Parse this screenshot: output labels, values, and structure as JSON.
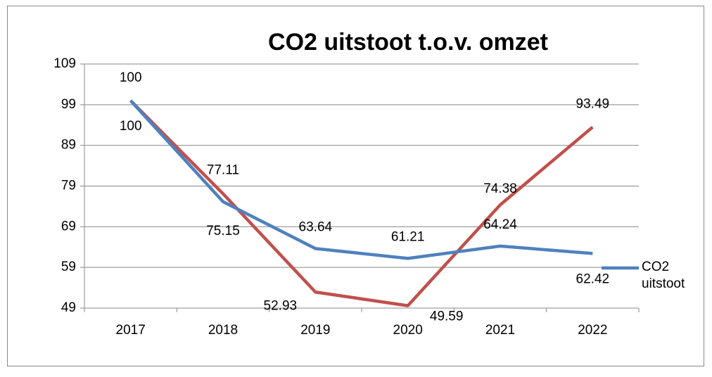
{
  "chart_data": {
    "type": "line",
    "title": "CO2 uitstoot t.o.v. omzet",
    "categories": [
      "2017",
      "2018",
      "2019",
      "2020",
      "2021",
      "2022"
    ],
    "series": [
      {
        "name": "CO2 uitstoot",
        "color": "#4f81bd",
        "values": [
          100,
          75.15,
          63.64,
          61.21,
          64.24,
          62.42
        ]
      },
      {
        "color": "#c0504d",
        "values": [
          100,
          77.11,
          52.93,
          49.59,
          74.38,
          93.49
        ]
      }
    ],
    "ylim": [
      49,
      109
    ],
    "yticks": [
      49,
      59,
      69,
      79,
      89,
      99,
      109
    ],
    "grid": true,
    "legend": "right"
  }
}
